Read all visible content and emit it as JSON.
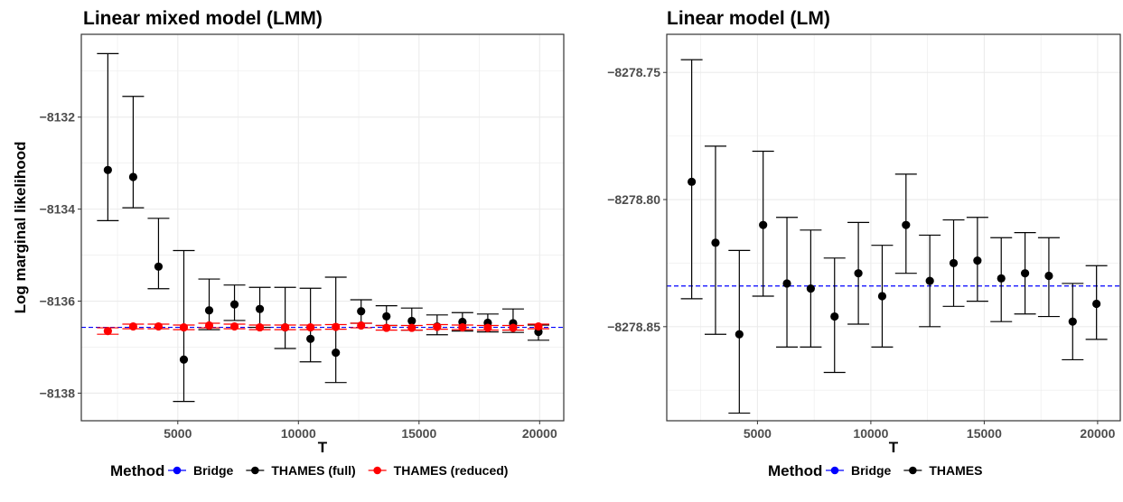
{
  "legend_title": "Method",
  "chart_data": [
    {
      "type": "scatter",
      "title": "Linear mixed model (LMM)",
      "xlabel": "T",
      "ylabel": "Log marginal likelihood",
      "xlim": [
        1000,
        21000
      ],
      "ylim": [
        -8138.6,
        -8130.2
      ],
      "xticks": [
        5000,
        10000,
        15000,
        20000
      ],
      "xtick_labels": [
        "5000",
        "10000",
        "15000",
        "20000"
      ],
      "yticks": [
        -8138,
        -8136,
        -8134,
        -8132
      ],
      "ytick_labels": [
        "−8138",
        "−8136",
        "−8134",
        "−8132"
      ],
      "grid": true,
      "legend_position": "bottom",
      "reference_line": {
        "name": "Bridge",
        "value": -8136.57,
        "color": "#0000ff",
        "style": "dashed"
      },
      "series": [
        {
          "name": "THAMES (full)",
          "color": "#000000",
          "x": [
            2100,
            3150,
            4200,
            5250,
            6300,
            7350,
            8400,
            9450,
            10500,
            11550,
            12600,
            13650,
            14700,
            15750,
            16800,
            17850,
            18900,
            19950
          ],
          "y": [
            -8133.15,
            -8133.3,
            -8135.25,
            -8137.27,
            -8136.2,
            -8136.07,
            -8136.17,
            -8136.57,
            -8136.82,
            -8137.12,
            -8136.22,
            -8136.33,
            -8136.43,
            -8136.55,
            -8136.45,
            -8136.47,
            -8136.48,
            -8136.67
          ],
          "lower": [
            -8134.25,
            -8133.97,
            -8135.73,
            -8138.18,
            -8136.62,
            -8136.42,
            -8136.57,
            -8137.03,
            -8137.32,
            -8137.77,
            -8136.48,
            -8136.53,
            -8136.63,
            -8136.73,
            -8136.65,
            -8136.67,
            -8136.68,
            -8136.85
          ],
          "upper": [
            -8130.62,
            -8131.55,
            -8134.2,
            -8134.9,
            -8135.52,
            -8135.65,
            -8135.7,
            -8135.7,
            -8135.72,
            -8135.48,
            -8135.97,
            -8136.1,
            -8136.15,
            -8136.3,
            -8136.25,
            -8136.28,
            -8136.17,
            -8136.52
          ]
        },
        {
          "name": "THAMES (reduced)",
          "color": "#ff0000",
          "x": [
            2100,
            3150,
            4200,
            5250,
            6300,
            7350,
            8400,
            9450,
            10500,
            11550,
            12600,
            13650,
            14700,
            15750,
            16800,
            17850,
            18900,
            19950
          ],
          "y": [
            -8136.65,
            -8136.55,
            -8136.55,
            -8136.57,
            -8136.53,
            -8136.55,
            -8136.57,
            -8136.57,
            -8136.57,
            -8136.56,
            -8136.53,
            -8136.58,
            -8136.58,
            -8136.56,
            -8136.57,
            -8136.58,
            -8136.58,
            -8136.55
          ],
          "lower": [
            -8136.72,
            -8136.6,
            -8136.6,
            -8136.62,
            -8136.58,
            -8136.6,
            -8136.62,
            -8136.62,
            -8136.62,
            -8136.61,
            -8136.58,
            -8136.63,
            -8136.63,
            -8136.61,
            -8136.62,
            -8136.63,
            -8136.63,
            -8136.6
          ],
          "upper": [
            -8136.58,
            -8136.5,
            -8136.5,
            -8136.52,
            -8136.48,
            -8136.5,
            -8136.52,
            -8136.52,
            -8136.52,
            -8136.51,
            -8136.48,
            -8136.53,
            -8136.53,
            -8136.51,
            -8136.52,
            -8136.53,
            -8136.53,
            -8136.5
          ]
        }
      ],
      "legend": [
        {
          "label": "Bridge",
          "color": "#0000ff"
        },
        {
          "label": "THAMES (full)",
          "color": "#000000"
        },
        {
          "label": "THAMES (reduced)",
          "color": "#ff0000"
        }
      ]
    },
    {
      "type": "scatter",
      "title": "Linear model (LM)",
      "xlabel": "T",
      "ylabel": "",
      "xlim": [
        1000,
        21000
      ],
      "ylim": [
        -8278.887,
        -8278.735
      ],
      "xticks": [
        5000,
        10000,
        15000,
        20000
      ],
      "xtick_labels": [
        "5000",
        "10000",
        "15000",
        "20000"
      ],
      "yticks": [
        -8278.85,
        -8278.8,
        -8278.75
      ],
      "ytick_labels": [
        "−8278.85",
        "−8278.80",
        "−8278.75"
      ],
      "grid": true,
      "legend_position": "bottom",
      "reference_line": {
        "name": "Bridge",
        "value": -8278.834,
        "color": "#0000ff",
        "style": "dashed"
      },
      "series": [
        {
          "name": "THAMES",
          "color": "#000000",
          "x": [
            2100,
            3150,
            4200,
            5250,
            6300,
            7350,
            8400,
            9450,
            10500,
            11550,
            12600,
            13650,
            14700,
            15750,
            16800,
            17850,
            18900,
            19950
          ],
          "y": [
            -8278.793,
            -8278.817,
            -8278.853,
            -8278.81,
            -8278.833,
            -8278.835,
            -8278.846,
            -8278.829,
            -8278.838,
            -8278.81,
            -8278.832,
            -8278.825,
            -8278.824,
            -8278.831,
            -8278.829,
            -8278.83,
            -8278.848,
            -8278.841
          ],
          "lower": [
            -8278.839,
            -8278.853,
            -8278.884,
            -8278.838,
            -8278.858,
            -8278.858,
            -8278.868,
            -8278.849,
            -8278.858,
            -8278.829,
            -8278.85,
            -8278.842,
            -8278.84,
            -8278.848,
            -8278.845,
            -8278.846,
            -8278.863,
            -8278.855
          ],
          "upper": [
            -8278.745,
            -8278.779,
            -8278.82,
            -8278.781,
            -8278.807,
            -8278.812,
            -8278.823,
            -8278.809,
            -8278.818,
            -8278.79,
            -8278.814,
            -8278.808,
            -8278.807,
            -8278.815,
            -8278.813,
            -8278.815,
            -8278.833,
            -8278.826
          ]
        }
      ],
      "legend": [
        {
          "label": "Bridge",
          "color": "#0000ff"
        },
        {
          "label": "THAMES",
          "color": "#000000"
        }
      ]
    }
  ]
}
